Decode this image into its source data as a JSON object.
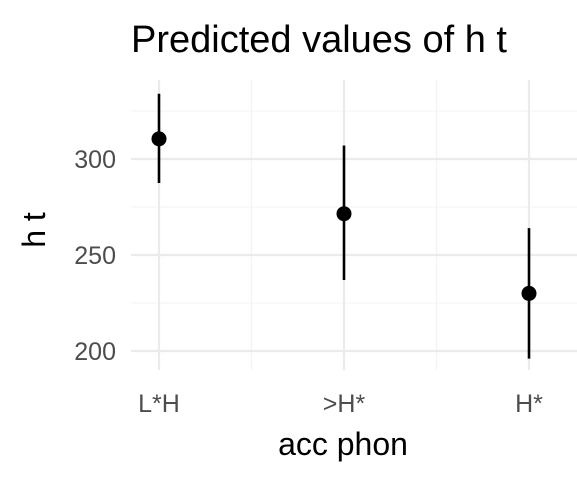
{
  "chart_data": {
    "type": "scatter",
    "title": "Predicted values of h t",
    "xlabel": "acc phon",
    "ylabel": "h t",
    "categories": [
      "L*H",
      ">H*",
      "H*"
    ],
    "series": [
      {
        "estimates": [
          310.5,
          271.5,
          230
        ],
        "conf_low": [
          287.5,
          237,
          196
        ],
        "conf_high": [
          334,
          307,
          264
        ]
      }
    ],
    "y_ticks": [
      200,
      250,
      300
    ],
    "y_tick_labels": [
      "200",
      "250",
      "300"
    ],
    "ylim": [
      190,
      340
    ],
    "grid": true,
    "colors": {
      "point": "#000000",
      "grid": "#ebebeb",
      "tick_text": "#4d4d4d"
    }
  }
}
